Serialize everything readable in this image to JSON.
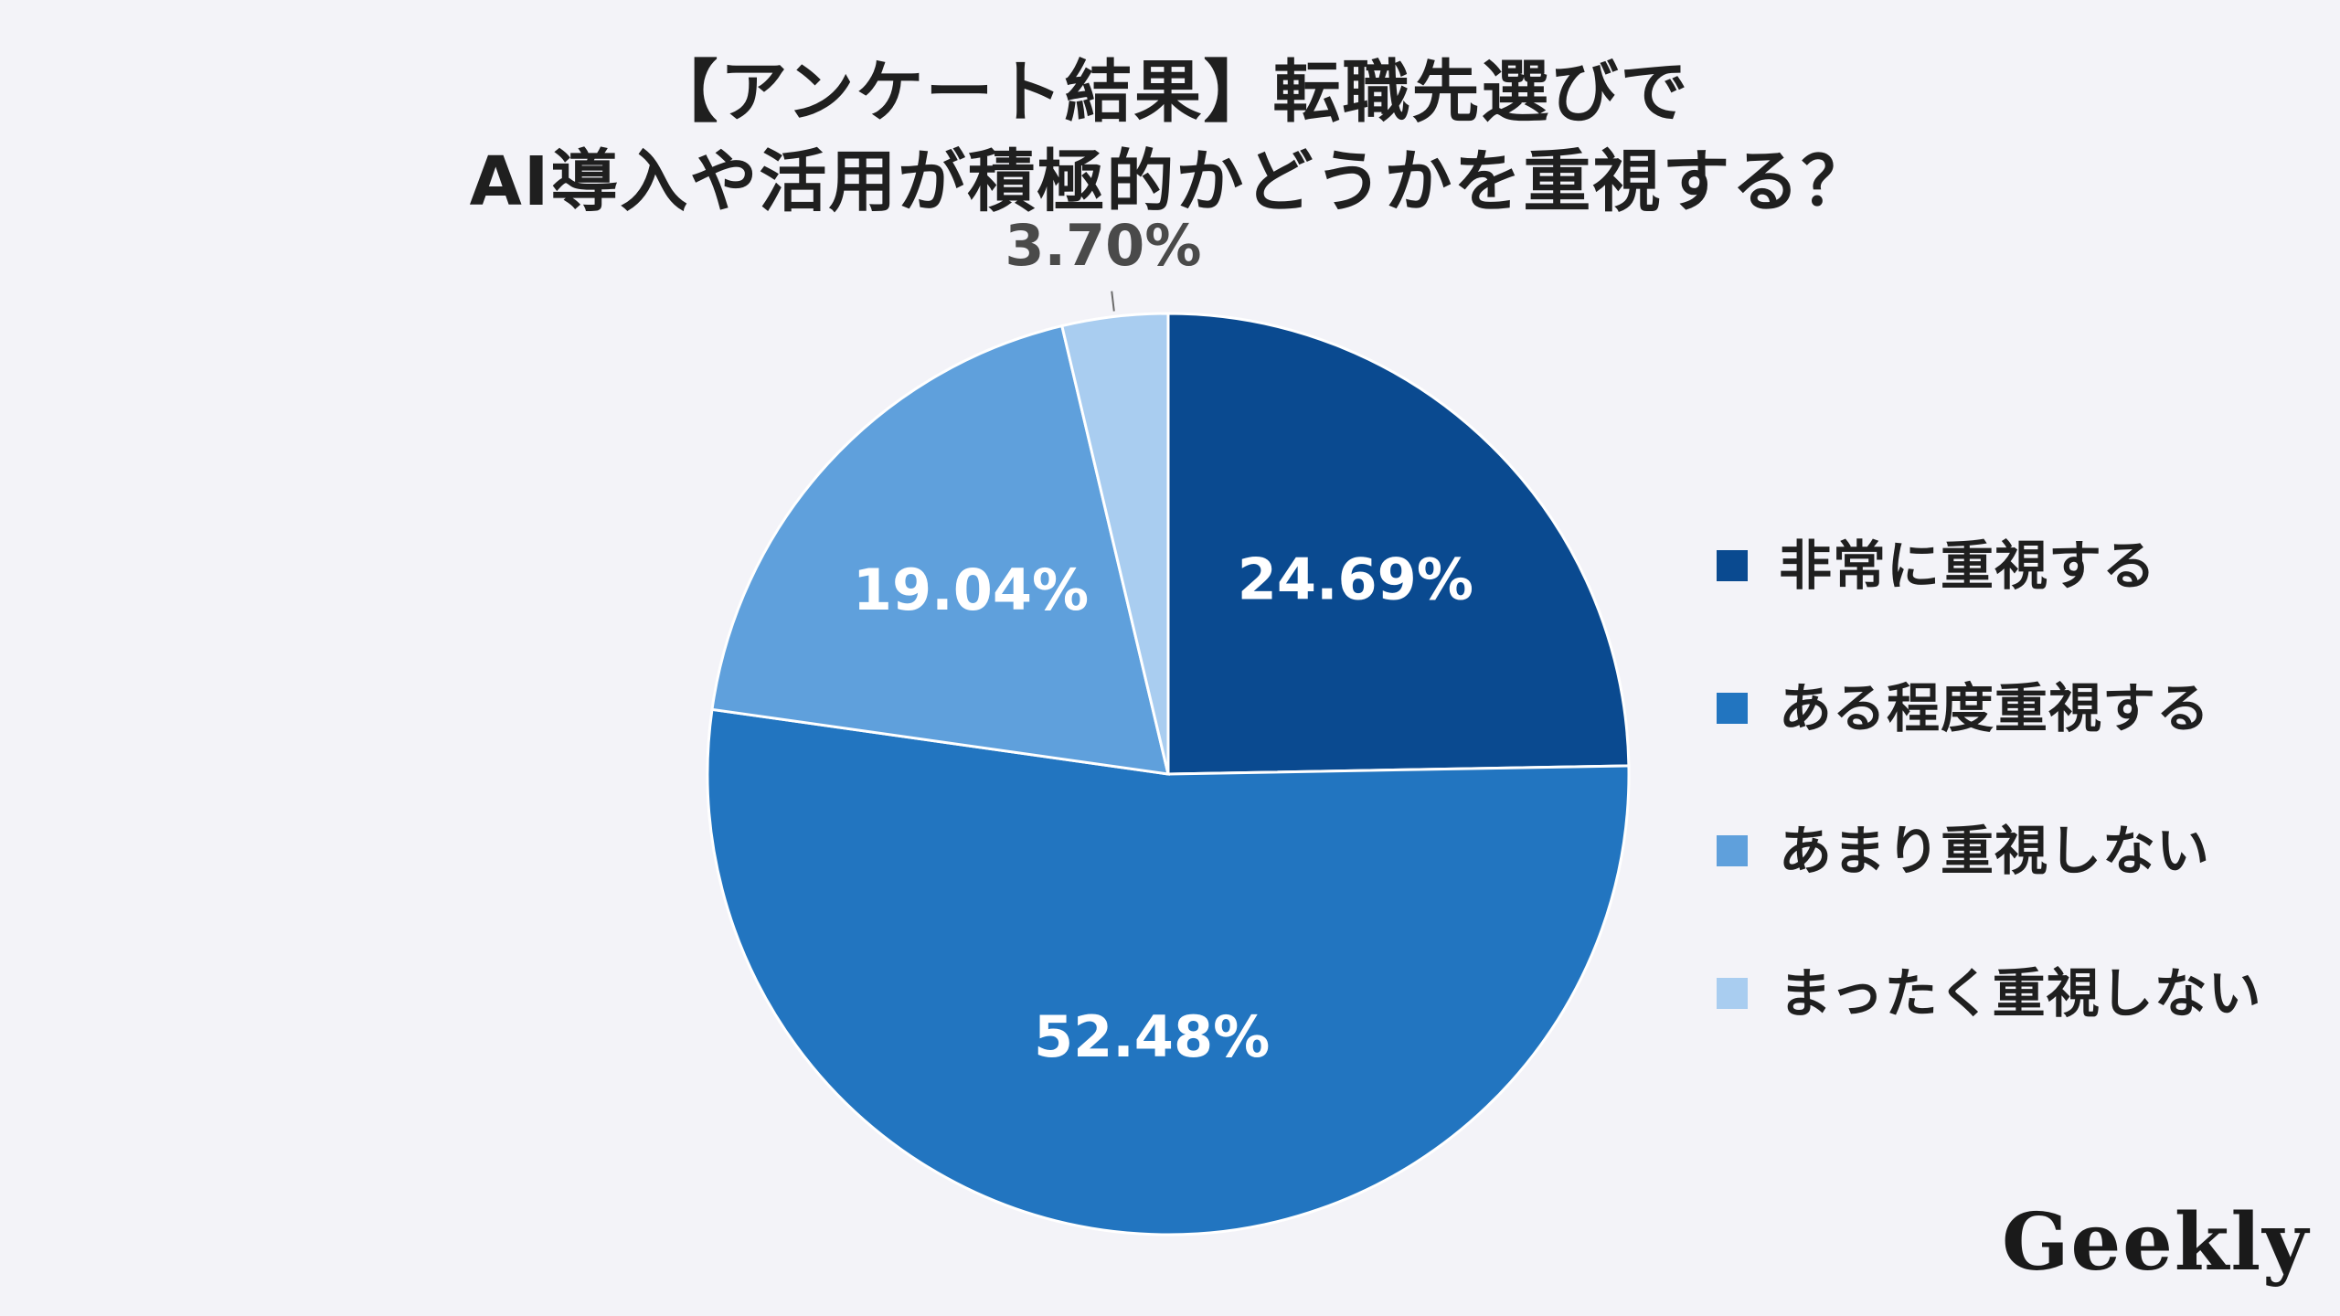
{
  "title_lines": [
    "【アンケート結果】転職先選びで",
    "AI導入や活用が積極的かどうかを重視する？"
  ],
  "logo": "Geekly",
  "chart_data": {
    "type": "pie",
    "title": "【アンケート結果】転職先選びで AI導入や活用が積極的かどうかを重視する？",
    "start_angle_deg": 0,
    "direction": "clockwise",
    "legend_position": "right",
    "slices": [
      {
        "label": "非常に重視する",
        "value": 24.69,
        "display": "24.69%",
        "color": "#0a4a90"
      },
      {
        "label": "ある程度重視する",
        "value": 52.48,
        "display": "52.48%",
        "color": "#2275c0"
      },
      {
        "label": "あまり重視しない",
        "value": 19.04,
        "display": "19.04%",
        "color": "#5fa0dc"
      },
      {
        "label": "まったく重視しない",
        "value": 3.7,
        "display": "3.70%",
        "color": "#a9cdf0"
      }
    ]
  }
}
